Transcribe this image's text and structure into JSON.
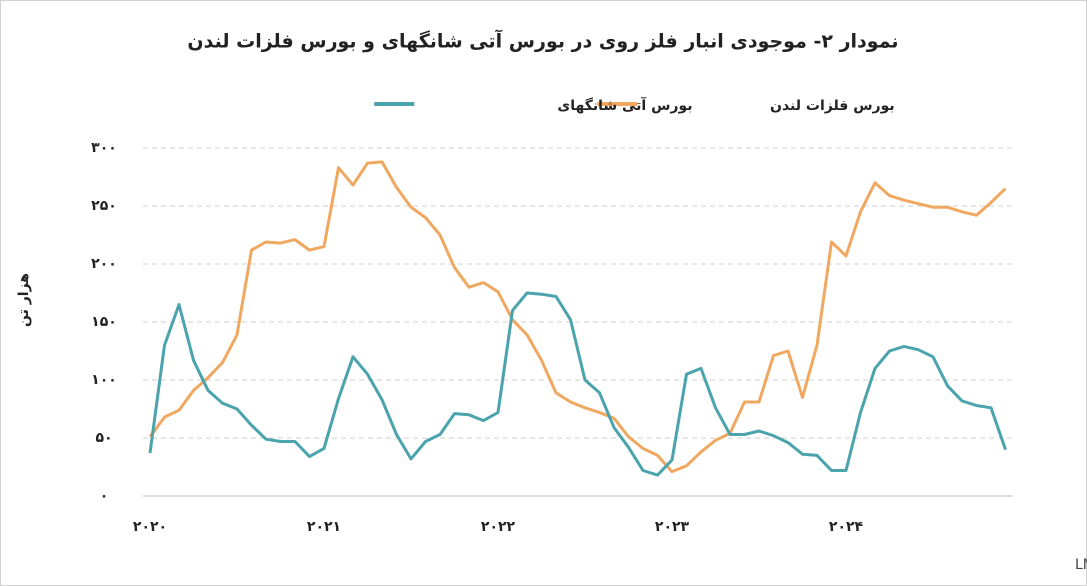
{
  "chart_data": {
    "type": "line",
    "title": "نمودار ۲- موجودی انبار فلز روی در بورس آتی شانگهای و بورس فلزات لندن",
    "y_label": "هزار تن",
    "source": "منبع: LME, SHFE",
    "categories": [
      "۲۰۲۰",
      null,
      null,
      null,
      null,
      null,
      null,
      null,
      null,
      null,
      null,
      null,
      "۲۰۲۱",
      null,
      null,
      null,
      null,
      null,
      null,
      null,
      null,
      null,
      null,
      null,
      "۲۰۲۲",
      null,
      null,
      null,
      null,
      null,
      null,
      null,
      null,
      null,
      null,
      null,
      "۲۰۲۳",
      null,
      null,
      null,
      null,
      null,
      null,
      null,
      null,
      null,
      null,
      null,
      "۲۰۲۴",
      null,
      null,
      null,
      null,
      null,
      null,
      null,
      null,
      null,
      null,
      null
    ],
    "series": [
      {
        "name": "بورس فلزات لندن",
        "color": "#f0a860",
        "values": [
          51,
          68,
          74,
          91,
          102,
          115,
          139,
          212,
          219,
          218,
          221,
          212,
          215,
          283,
          268,
          287,
          288,
          266,
          249,
          240,
          225,
          197,
          180,
          184,
          176,
          152,
          139,
          117,
          89,
          81,
          76,
          72,
          67,
          51,
          41,
          35,
          21,
          26,
          38,
          48,
          54,
          81,
          81,
          121,
          125,
          85,
          130,
          219,
          207,
          245,
          270,
          259,
          255,
          252,
          249,
          249,
          245,
          242,
          253,
          265
        ]
      },
      {
        "name": "بورس آتی شانگهای",
        "color": "#4aa3ad",
        "values": [
          37,
          130,
          165,
          117,
          91,
          80,
          75,
          61,
          49,
          47,
          47,
          34,
          41,
          84,
          120,
          105,
          83,
          53,
          32,
          47,
          53,
          71,
          70,
          65,
          72,
          160,
          175,
          174,
          172,
          152,
          100,
          89,
          59,
          42,
          22,
          18,
          31,
          105,
          110,
          76,
          53,
          53,
          56,
          52,
          46,
          36,
          35,
          22,
          22,
          72,
          110,
          125,
          129,
          126,
          120,
          95,
          82,
          78,
          76,
          40
        ]
      }
    ],
    "ylim": [
      0,
      300
    ],
    "yticks": [
      {
        "value": 0,
        "label": "۰"
      },
      {
        "value": 50,
        "label": "۵۰"
      },
      {
        "value": 100,
        "label": "۱۰۰"
      },
      {
        "value": 150,
        "label": "۱۵۰"
      },
      {
        "value": 200,
        "label": "۲۰۰"
      },
      {
        "value": 250,
        "label": "۲۵۰"
      },
      {
        "value": 300,
        "label": "۳۰۰"
      }
    ],
    "grid": true
  }
}
